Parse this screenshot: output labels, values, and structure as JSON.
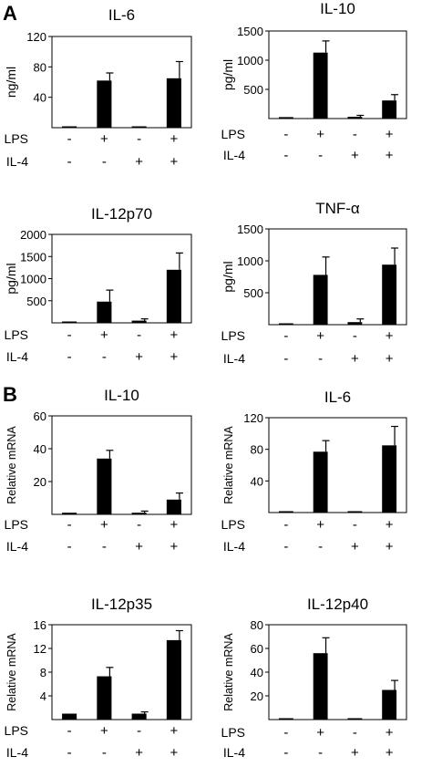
{
  "panels": [
    {
      "letter": "A"
    },
    {
      "letter": "B"
    }
  ],
  "chart_data": [
    {
      "type": "bar",
      "panel": "A",
      "title": "IL-6",
      "ylabel": "ng/ml",
      "ylim": [
        0,
        120
      ],
      "yticks": [
        40,
        80,
        120
      ],
      "conditions": {
        "LPS": [
          "-",
          "+",
          "-",
          "+"
        ],
        "IL-4": [
          "-",
          "-",
          "+",
          "+"
        ]
      },
      "values": [
        1,
        62,
        1,
        65
      ],
      "errors": [
        0,
        10,
        0,
        22
      ]
    },
    {
      "type": "bar",
      "panel": "A",
      "title": "IL-10",
      "ylabel": "pg/ml",
      "ylim": [
        0,
        1500
      ],
      "yticks": [
        500,
        1000,
        1500
      ],
      "conditions": {
        "LPS": [
          "-",
          "+",
          "-",
          "+"
        ],
        "IL-4": [
          "-",
          "-",
          "+",
          "+"
        ]
      },
      "values": [
        25,
        1130,
        30,
        310
      ],
      "errors": [
        0,
        200,
        25,
        100
      ]
    },
    {
      "type": "bar",
      "panel": "A",
      "title": "IL-12p70",
      "ylabel": "pg/ml",
      "ylim": [
        0,
        2000
      ],
      "yticks": [
        500,
        1000,
        1500,
        2000
      ],
      "conditions": {
        "LPS": [
          "-",
          "+",
          "-",
          "+"
        ],
        "IL-4": [
          "-",
          "-",
          "+",
          "+"
        ]
      },
      "values": [
        10,
        480,
        50,
        1200
      ],
      "errors": [
        0,
        260,
        40,
        380
      ]
    },
    {
      "type": "bar",
      "panel": "A",
      "title": "TNF-α",
      "ylabel": "pg/ml",
      "ylim": [
        0,
        1500
      ],
      "yticks": [
        500,
        1000,
        1500
      ],
      "conditions": {
        "LPS": [
          "-",
          "+",
          "-",
          "+"
        ],
        "IL-4": [
          "-",
          "-",
          "+",
          "+"
        ]
      },
      "values": [
        15,
        780,
        40,
        940
      ],
      "errors": [
        0,
        280,
        50,
        260
      ]
    },
    {
      "type": "bar",
      "panel": "B",
      "title": "IL-10",
      "ylabel": "Relative mRNA",
      "ylim": [
        0,
        60
      ],
      "yticks": [
        20,
        40,
        60
      ],
      "conditions": {
        "LPS": [
          "-",
          "+",
          "-",
          "+"
        ],
        "IL-4": [
          "-",
          "-",
          "+",
          "+"
        ]
      },
      "values": [
        1,
        34,
        1,
        9
      ],
      "errors": [
        0,
        5,
        1,
        4
      ]
    },
    {
      "type": "bar",
      "panel": "B",
      "title": "IL-6",
      "ylabel": "Relative mRNA",
      "ylim": [
        0,
        120
      ],
      "yticks": [
        40,
        80,
        120
      ],
      "conditions": {
        "LPS": [
          "-",
          "+",
          "-",
          "+"
        ],
        "IL-4": [
          "-",
          "-",
          "+",
          "+"
        ]
      },
      "values": [
        1,
        77,
        1,
        85
      ],
      "errors": [
        0,
        14,
        0,
        24
      ]
    },
    {
      "type": "bar",
      "panel": "B",
      "title": "IL-12p35",
      "ylabel": "Relative mRNA",
      "ylim": [
        0,
        16
      ],
      "yticks": [
        4,
        8,
        12,
        16
      ],
      "conditions": {
        "LPS": [
          "-",
          "+",
          "-",
          "+"
        ],
        "IL-4": [
          "-",
          "-",
          "+",
          "+"
        ]
      },
      "values": [
        1,
        7.3,
        1,
        13.4
      ],
      "errors": [
        0,
        1.5,
        0.3,
        1.6
      ]
    },
    {
      "type": "bar",
      "panel": "B",
      "title": "IL-12p40",
      "ylabel": "Relative mRNA",
      "ylim": [
        0,
        80
      ],
      "yticks": [
        20,
        40,
        60,
        80
      ],
      "conditions": {
        "LPS": [
          "-",
          "+",
          "-",
          "+"
        ],
        "IL-4": [
          "-",
          "-",
          "+",
          "+"
        ]
      },
      "values": [
        0.5,
        56,
        1,
        25
      ],
      "errors": [
        0,
        13,
        0,
        8
      ]
    }
  ]
}
